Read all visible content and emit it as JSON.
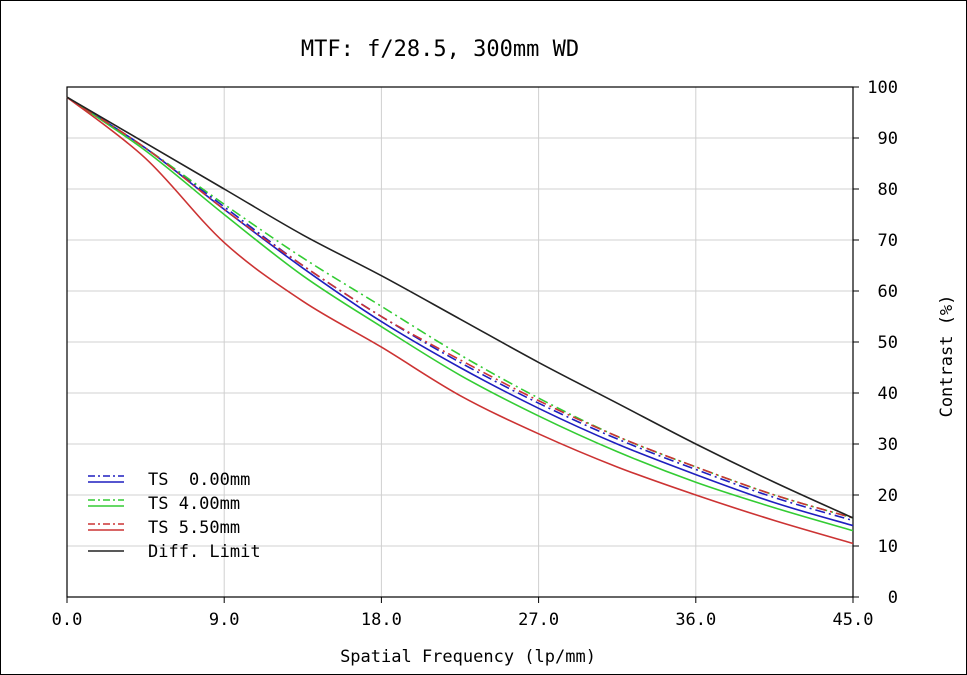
{
  "chart_data": {
    "type": "line",
    "title": "MTF: f/28.5, 300mm WD",
    "xlabel": "Spatial Frequency (lp/mm)",
    "ylabel": "Contrast (%)",
    "xlim": [
      0,
      45
    ],
    "ylim": [
      0,
      100
    ],
    "xticks": [
      "0.0",
      "9.0",
      "18.0",
      "27.0",
      "36.0",
      "45.0"
    ],
    "yticks": [
      "0",
      "10",
      "20",
      "30",
      "40",
      "50",
      "60",
      "70",
      "80",
      "90",
      "100"
    ],
    "grid": true,
    "legend_position": "bottom-left",
    "x": [
      0,
      4.5,
      9,
      13.5,
      18,
      22.5,
      27,
      31.5,
      36,
      40.5,
      45
    ],
    "series": [
      {
        "name": "TS  0.00mm",
        "component": "T",
        "color": "#1f1fbf",
        "style": "dashdot",
        "values": [
          98,
          88,
          76.5,
          65,
          55,
          46,
          38,
          31,
          25,
          19.5,
          15
        ]
      },
      {
        "name": "TS  0.00mm",
        "component": "S",
        "color": "#1f1fbf",
        "style": "solid",
        "values": [
          98,
          88,
          76,
          64.5,
          54,
          45,
          37,
          30,
          24,
          18.5,
          14
        ]
      },
      {
        "name": "TS 4.00mm",
        "component": "T",
        "color": "#33cc33",
        "style": "dashdot",
        "values": [
          98,
          88,
          77,
          66.5,
          57,
          47.5,
          39,
          31.5,
          25.5,
          20,
          15.5
        ]
      },
      {
        "name": "TS 4.00mm",
        "component": "S",
        "color": "#33cc33",
        "style": "solid",
        "values": [
          98,
          87.5,
          75,
          63,
          53,
          43.5,
          35.5,
          28.5,
          22.5,
          17.5,
          13
        ]
      },
      {
        "name": "TS 5.50mm",
        "component": "T",
        "color": "#cc3333",
        "style": "dashdot",
        "values": [
          98,
          88,
          76,
          65,
          55,
          46.5,
          38.5,
          31.5,
          25.5,
          20,
          15.5
        ]
      },
      {
        "name": "TS 5.50mm",
        "component": "S",
        "color": "#cc3333",
        "style": "solid",
        "values": [
          98,
          86,
          69.5,
          58,
          49,
          39.5,
          32,
          25.5,
          20,
          15,
          10.5
        ]
      },
      {
        "name": "Diff. Limit",
        "component": "",
        "color": "#222222",
        "style": "solid",
        "values": [
          98,
          89,
          80,
          71,
          63,
          54.5,
          46,
          38,
          30,
          22.5,
          15.5
        ]
      }
    ],
    "legend": [
      {
        "label": "TS  0.00mm",
        "color": "#1f1fbf",
        "type": "ts"
      },
      {
        "label": "TS 4.00mm",
        "color": "#33cc33",
        "type": "ts"
      },
      {
        "label": "TS 5.50mm",
        "color": "#cc3333",
        "type": "ts"
      },
      {
        "label": "Diff. Limit",
        "color": "#222222",
        "type": "solid"
      }
    ]
  }
}
